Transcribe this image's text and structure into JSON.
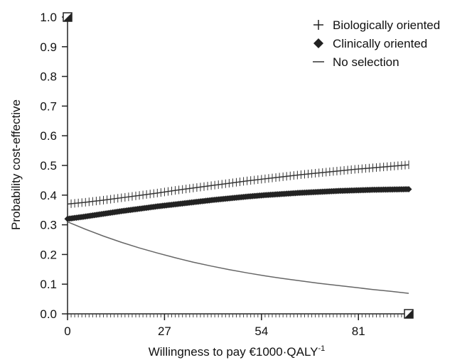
{
  "chart_data": {
    "type": "line",
    "title": "",
    "xlabel": "Willingness to pay €1000·QALY",
    "xlabel_superscript": "-1",
    "ylabel": "Probability cost-effective",
    "xlim": [
      0,
      95
    ],
    "ylim": [
      0,
      1.0
    ],
    "xticks": [
      0,
      27,
      54,
      81
    ],
    "yticks": [
      0.0,
      0.1,
      0.2,
      0.3,
      0.4,
      0.5,
      0.6,
      0.7,
      0.8,
      0.9,
      1.0
    ],
    "ytick_labels": [
      "0.0",
      "0.1",
      "0.2",
      "0.3",
      "0.4",
      "0.5",
      "0.6",
      "0.7",
      "0.8",
      "0.9",
      "1.0"
    ],
    "xtick_labels": [
      "0",
      "27",
      "54",
      "81"
    ],
    "grid": false,
    "legend_position": "top-right",
    "x": [
      0,
      5,
      10,
      15,
      20,
      25,
      30,
      35,
      40,
      45,
      50,
      55,
      60,
      65,
      70,
      75,
      80,
      85,
      90,
      95
    ],
    "series": [
      {
        "name": "Biologically oriented",
        "marker": "plus",
        "color": "#333333",
        "values": [
          0.37,
          0.376,
          0.383,
          0.391,
          0.399,
          0.407,
          0.416,
          0.424,
          0.432,
          0.44,
          0.448,
          0.455,
          0.462,
          0.469,
          0.475,
          0.481,
          0.487,
          0.492,
          0.497,
          0.502
        ]
      },
      {
        "name": "Clinically oriented",
        "marker": "diamond",
        "color": "#222222",
        "values": [
          0.32,
          0.328,
          0.337,
          0.346,
          0.354,
          0.362,
          0.369,
          0.376,
          0.383,
          0.389,
          0.395,
          0.4,
          0.404,
          0.408,
          0.411,
          0.414,
          0.416,
          0.418,
          0.419,
          0.42
        ]
      },
      {
        "name": "No selection",
        "marker": "none",
        "color": "#666666",
        "values": [
          0.31,
          0.285,
          0.262,
          0.241,
          0.222,
          0.205,
          0.189,
          0.174,
          0.161,
          0.149,
          0.138,
          0.128,
          0.119,
          0.111,
          0.103,
          0.096,
          0.089,
          0.082,
          0.076,
          0.069
        ]
      }
    ],
    "endpoint_markers": [
      {
        "x": 0,
        "y": 1.0,
        "style": "square-half"
      },
      {
        "x": 95,
        "y": 0.0,
        "style": "square-half"
      }
    ]
  }
}
